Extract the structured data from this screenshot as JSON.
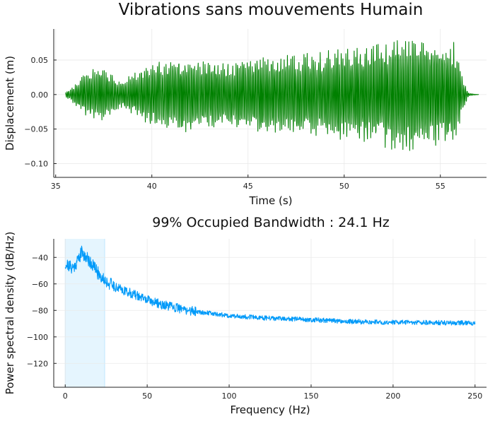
{
  "chart_data": [
    {
      "type": "line",
      "title": "Vibrations sans mouvements Humain",
      "xlabel": "Time (s)",
      "ylabel": "Displacement (m)",
      "xlim": [
        34.9,
        57.4
      ],
      "ylim": [
        -0.12,
        0.095
      ],
      "x_ticks": [
        35,
        40,
        45,
        50,
        55
      ],
      "x_tick_labels": [
        "35",
        "40",
        "45",
        "50",
        "55"
      ],
      "y_ticks": [
        -0.1,
        -0.05,
        0.0,
        0.05
      ],
      "y_tick_labels": [
        "−0.10",
        "−0.05",
        "0.00",
        "0.05"
      ],
      "grid": true,
      "legend": "none",
      "series": [
        {
          "color": "#008000",
          "x_range": [
            35.5,
            57.0
          ],
          "envelope": [
            {
              "t": 35.5,
              "amp": 0.003
            },
            {
              "t": 36.0,
              "amp": 0.015
            },
            {
              "t": 36.6,
              "amp": 0.035
            },
            {
              "t": 37.5,
              "amp": 0.04
            },
            {
              "t": 38.3,
              "amp": 0.02
            },
            {
              "t": 39.3,
              "amp": 0.035
            },
            {
              "t": 40.0,
              "amp": 0.05
            },
            {
              "t": 42.0,
              "amp": 0.055
            },
            {
              "t": 44.0,
              "amp": 0.05
            },
            {
              "t": 46.0,
              "amp": 0.06
            },
            {
              "t": 48.0,
              "amp": 0.06
            },
            {
              "t": 50.0,
              "amp": 0.07
            },
            {
              "t": 52.0,
              "amp": 0.075
            },
            {
              "t": 53.0,
              "amp": 0.09
            },
            {
              "t": 54.5,
              "amp": 0.08
            },
            {
              "t": 55.7,
              "amp": 0.08
            },
            {
              "t": 56.2,
              "amp": 0.02
            },
            {
              "t": 56.5,
              "amp": 0.002
            },
            {
              "t": 57.0,
              "amp": 0.0
            }
          ],
          "y_min": -0.115,
          "y_max": 0.089
        }
      ]
    },
    {
      "type": "line",
      "title": "99% Occupied Bandwidth : 24.1 Hz",
      "xlabel": "Frequency (Hz)",
      "ylabel": "Power spectral density (dB/Hz)",
      "xlim": [
        -7,
        257
      ],
      "ylim": [
        -138,
        -26
      ],
      "x_ticks": [
        0,
        50,
        100,
        150,
        200,
        250
      ],
      "x_tick_labels": [
        "0",
        "50",
        "100",
        "150",
        "200",
        "250"
      ],
      "y_ticks": [
        -120,
        -100,
        -80,
        -60,
        -40
      ],
      "y_tick_labels": [
        "−120",
        "−100",
        "−80",
        "−60",
        "−40"
      ],
      "grid": true,
      "legend": "none",
      "occupied_band": {
        "from": 0,
        "to": 24.1,
        "color": "#009af9"
      },
      "series": [
        {
          "color": "#009af9",
          "x_range": [
            0,
            250
          ],
          "profile": [
            {
              "f": 0,
              "db": -45
            },
            {
              "f": 5,
              "db": -48
            },
            {
              "f": 8,
              "db": -41
            },
            {
              "f": 10,
              "db": -36
            },
            {
              "f": 13,
              "db": -40
            },
            {
              "f": 17,
              "db": -46
            },
            {
              "f": 20,
              "db": -52
            },
            {
              "f": 25,
              "db": -58
            },
            {
              "f": 30,
              "db": -62
            },
            {
              "f": 40,
              "db": -67
            },
            {
              "f": 50,
              "db": -72
            },
            {
              "f": 60,
              "db": -76
            },
            {
              "f": 75,
              "db": -80
            },
            {
              "f": 100,
              "db": -84
            },
            {
              "f": 125,
              "db": -86
            },
            {
              "f": 150,
              "db": -87
            },
            {
              "f": 175,
              "db": -88.5
            },
            {
              "f": 200,
              "db": -89
            },
            {
              "f": 225,
              "db": -89.3
            },
            {
              "f": 250,
              "db": -89.5
            }
          ]
        }
      ]
    }
  ]
}
